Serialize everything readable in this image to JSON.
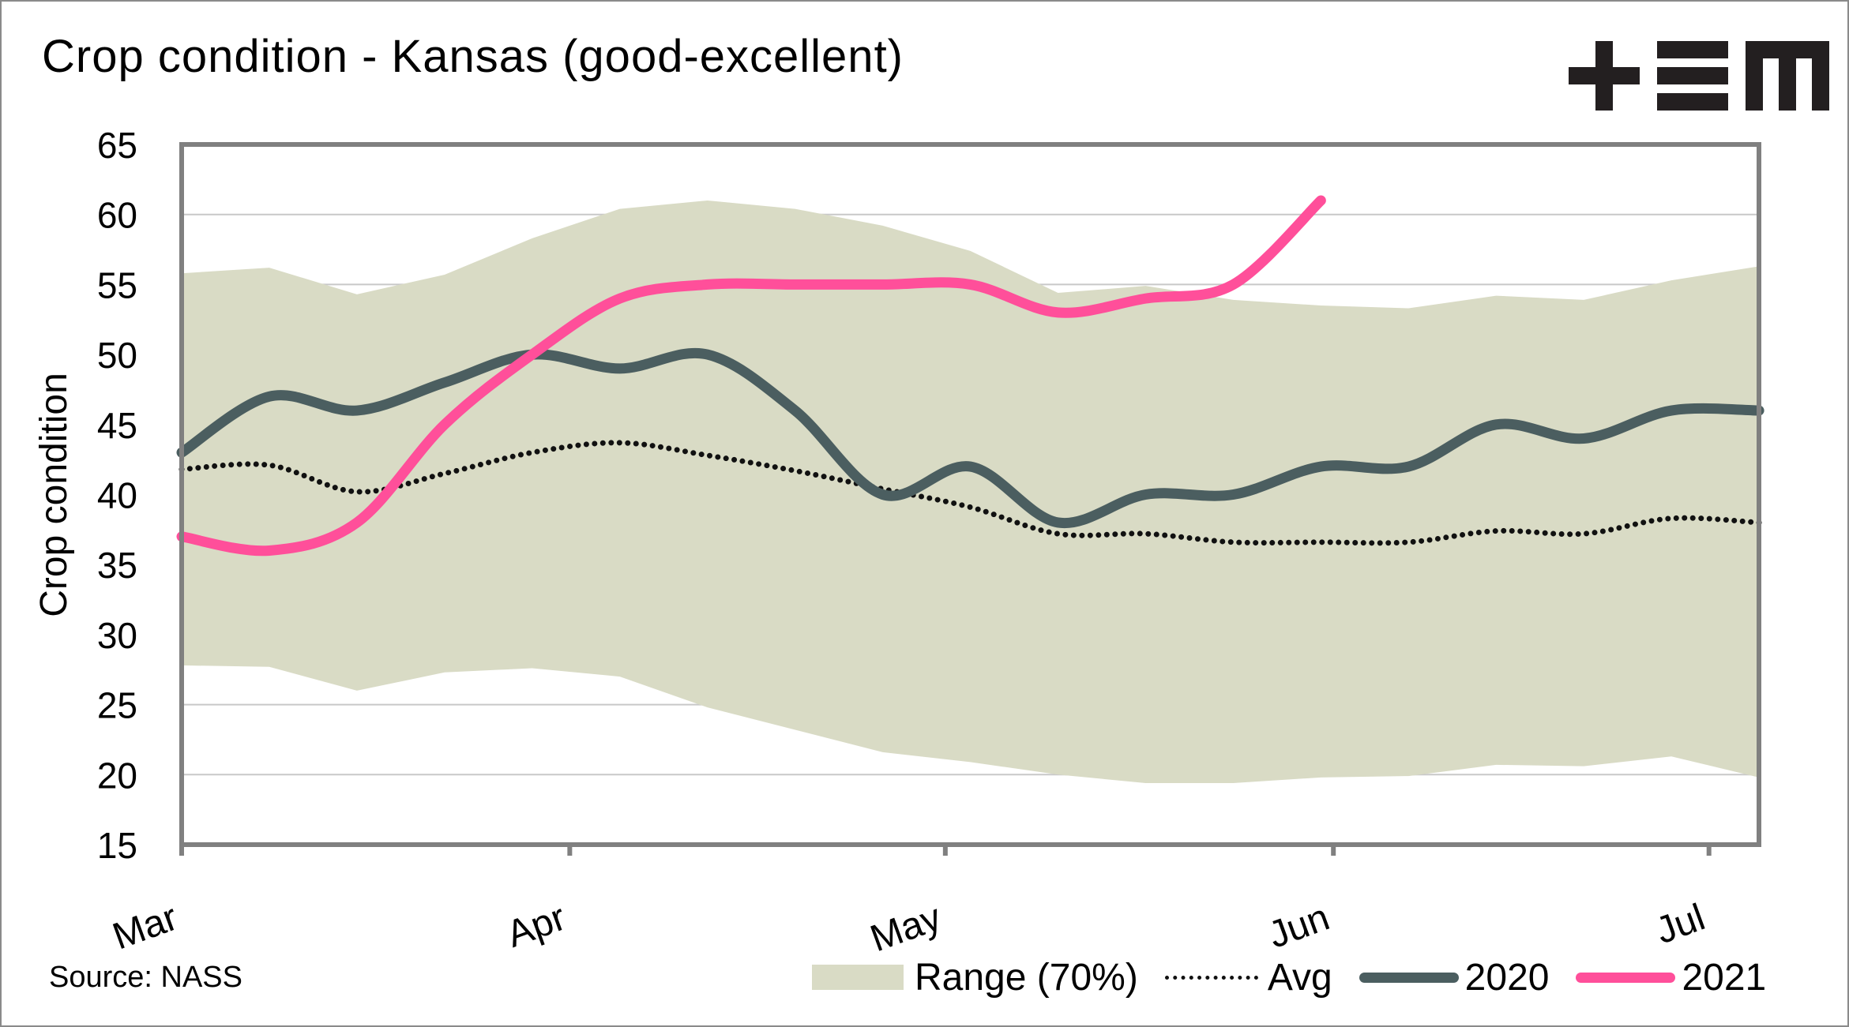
{
  "chart_data": {
    "type": "line",
    "title": "Crop condition - Kansas (good-excellent)",
    "xlabel": "",
    "ylabel": "Crop condition",
    "ylim": [
      15,
      65
    ],
    "yticks": [
      15,
      20,
      25,
      30,
      35,
      40,
      45,
      50,
      55,
      60,
      65
    ],
    "grid": true,
    "x_unit": "weeks since Mar 1 (weekly observations)",
    "xlim_days": [
      0,
      126
    ],
    "x_ticks": [
      {
        "label": "Mar",
        "day": 0
      },
      {
        "label": "Apr",
        "day": 31
      },
      {
        "label": "May",
        "day": 61
      },
      {
        "label": "Jun",
        "day": 92
      },
      {
        "label": "Jul",
        "day": 122
      }
    ],
    "x_days": [
      0,
      7,
      14,
      21,
      28,
      35,
      42,
      49,
      56,
      63,
      70,
      77,
      84,
      91,
      98,
      105,
      112,
      119,
      126
    ],
    "range": {
      "name": "Range (70%)",
      "upper": [
        55.8,
        56.2,
        54.3,
        55.7,
        58.3,
        60.4,
        61.0,
        60.4,
        59.2,
        57.4,
        54.4,
        54.9,
        53.9,
        53.5,
        53.3,
        54.2,
        53.9,
        55.3,
        56.3
      ],
      "lower": [
        27.8,
        27.7,
        26.0,
        27.3,
        27.6,
        27.0,
        24.8,
        23.2,
        21.6,
        20.9,
        20.0,
        19.4,
        19.4,
        19.8,
        19.9,
        20.7,
        20.6,
        21.3,
        19.8
      ]
    },
    "series": [
      {
        "name": "Avg",
        "style": "dotted",
        "values": [
          41.8,
          42.1,
          40.2,
          41.5,
          43.0,
          43.7,
          42.8,
          41.7,
          40.4,
          39.1,
          37.2,
          37.2,
          36.6,
          36.6,
          36.6,
          37.4,
          37.2,
          38.3,
          38.0
        ]
      },
      {
        "name": "2020",
        "style": "solid",
        "values": [
          43,
          47,
          46,
          48,
          50,
          49,
          50,
          46,
          40,
          42,
          38,
          40,
          40,
          42,
          42,
          45,
          44,
          46,
          46
        ]
      },
      {
        "name": "2021",
        "style": "solid",
        "values": [
          37,
          36,
          38,
          45,
          50,
          54,
          55,
          55,
          55,
          55,
          53,
          54,
          55,
          61,
          null,
          null,
          null,
          null,
          null
        ]
      }
    ],
    "legend": [
      "Range (70%)",
      "Avg",
      "2020",
      "2021"
    ],
    "legend_position": "bottom-right"
  },
  "colors": {
    "range_fill": "#d9dbc5",
    "avg": "#111111",
    "series_2020": "#4b5e60",
    "series_2021": "#ff4f9a",
    "axis": "#808080",
    "grid": "#c8c8c8"
  },
  "source": "Source: NASS",
  "logo": {
    "name": "EM brand logo",
    "glyphs": "+EM"
  }
}
